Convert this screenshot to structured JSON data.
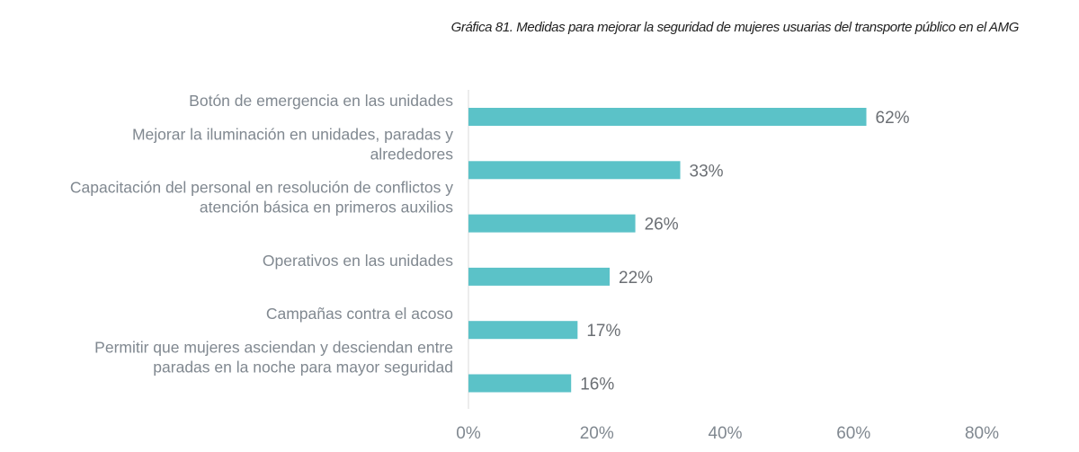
{
  "chart_data": {
    "type": "bar",
    "orientation": "horizontal",
    "title": "Gráfica 81. Medidas para mejorar la seguridad de mujeres usuarias del transporte público en el AMG",
    "categories": [
      [
        "Botón de emergencia en las unidades"
      ],
      [
        "Mejorar la iluminación en unidades, paradas y",
        "alrededores"
      ],
      [
        "Capacitación del personal en resolución de conflictos y",
        "atención básica en primeros auxilios"
      ],
      [
        "Operativos en las unidades"
      ],
      [
        "Campañas contra el acoso"
      ],
      [
        "Permitir que mujeres asciendan y desciendan entre",
        "paradas en la noche para mayor seguridad"
      ]
    ],
    "values": [
      62,
      33,
      26,
      22,
      17,
      16
    ],
    "data_labels": [
      "62%",
      "33%",
      "26%",
      "22%",
      "17%",
      "16%"
    ],
    "xlim": [
      0,
      80
    ],
    "xticks": [
      0,
      20,
      40,
      60,
      80
    ],
    "xtick_labels": [
      "0%",
      "20%",
      "40%",
      "60%",
      "80%"
    ],
    "grid": false,
    "legend": "none",
    "bar_color": "#5BC2C8"
  }
}
